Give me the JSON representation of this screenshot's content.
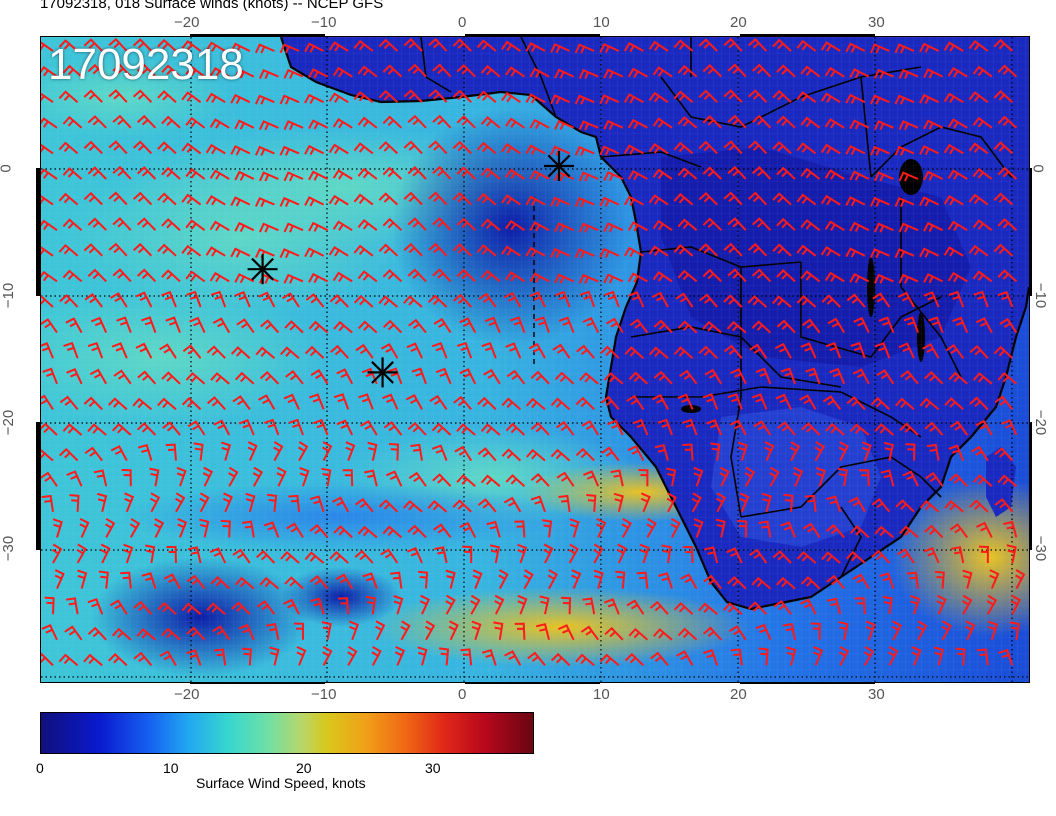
{
  "header": {
    "title": "17092318, 018 Surface winds (knots) -- NCEP GFS"
  },
  "map": {
    "stamp": "17092318",
    "longitude_ticks_top": [
      "−20",
      "−10",
      "0",
      "10",
      "20",
      "30"
    ],
    "longitude_ticks_bottom": [
      "−20",
      "−10",
      "0",
      "10",
      "20",
      "30"
    ],
    "latitude_ticks_left": [
      "0",
      "−10",
      "−20",
      "−30"
    ],
    "latitude_ticks_right": [
      "0",
      "−10",
      "−20",
      "−30"
    ],
    "lon_range": [
      -30,
      40
    ],
    "lat_range": [
      -40,
      10
    ],
    "markers": [
      {
        "name": "marker-star-gulf-of-guinea",
        "lon": 6.7,
        "lat": 0
      },
      {
        "name": "marker-star-mid-atlantic",
        "lon": -14.3,
        "lat": -8
      },
      {
        "name": "marker-star-south-atlantic",
        "lon": -5.8,
        "lat": -16
      }
    ],
    "colors": {
      "barbs": "#ff1a1a",
      "coast": "#000000",
      "grid": "#000000"
    }
  },
  "colorbar": {
    "ticks": [
      "0",
      "10",
      "20",
      "30"
    ],
    "tick_values": [
      0,
      10,
      20,
      30
    ],
    "max": 38,
    "label": "Surface Wind Speed, knots"
  }
}
